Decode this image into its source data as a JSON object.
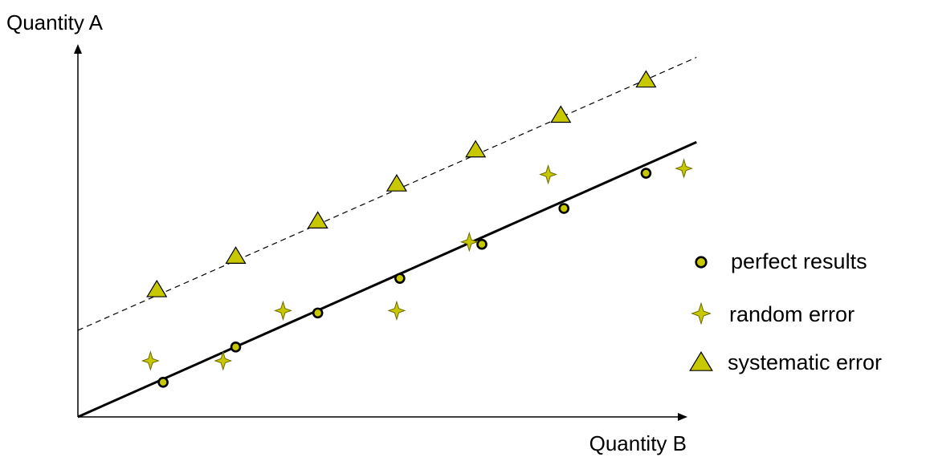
{
  "chart_data": {
    "type": "scatter",
    "xlabel": "Quantity B",
    "ylabel": "Quantity A",
    "xlim": [
      0,
      10
    ],
    "ylim": [
      0,
      6
    ],
    "grid": false,
    "legend_position": "right",
    "colors": {
      "marker_fill": "#c8c800",
      "stroke": "#000000"
    },
    "series": [
      {
        "name": "perfect results",
        "marker": "circle",
        "x": [
          1.35,
          2.5,
          3.8,
          5.1,
          6.4,
          7.7,
          9.0
        ],
        "y": [
          0.58,
          1.17,
          1.74,
          2.32,
          2.89,
          3.49,
          4.08
        ]
      },
      {
        "name": "random error",
        "marker": "star4",
        "x": [
          1.15,
          2.3,
          3.25,
          5.05,
          6.2,
          7.45,
          9.6
        ],
        "y": [
          0.94,
          0.94,
          1.78,
          1.78,
          2.93,
          4.06,
          4.16
        ]
      },
      {
        "name": "systematic error",
        "marker": "triangle",
        "x": [
          1.25,
          2.5,
          3.8,
          5.05,
          6.3,
          7.65,
          9.0
        ],
        "y": [
          2.12,
          2.68,
          3.27,
          3.89,
          4.46,
          5.04,
          5.63
        ]
      }
    ],
    "lines": [
      {
        "style": "solid",
        "x": [
          0,
          9.8
        ],
        "y": [
          0,
          4.6
        ]
      },
      {
        "style": "dashed",
        "x": [
          0,
          9.8
        ],
        "y": [
          1.45,
          6.02
        ]
      }
    ]
  }
}
